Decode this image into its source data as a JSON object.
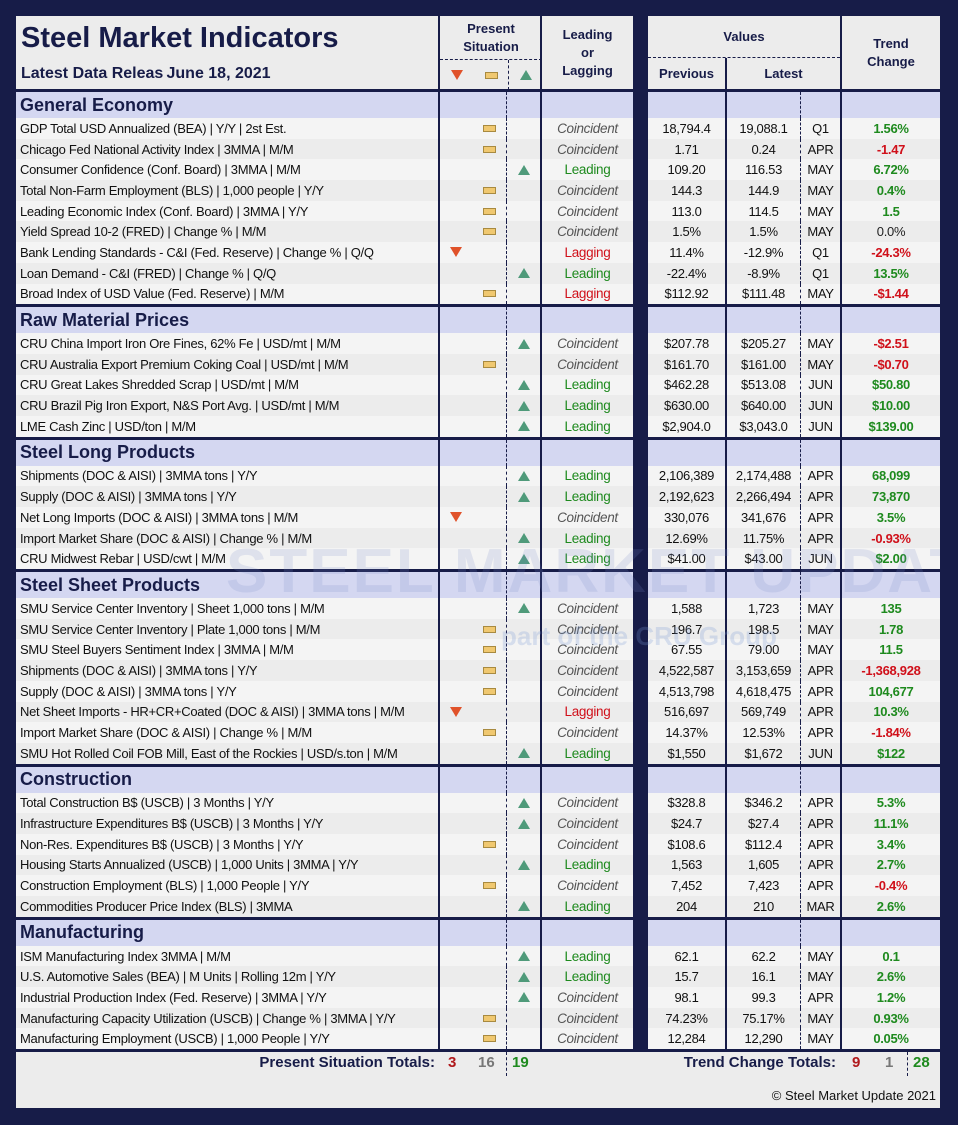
{
  "header": {
    "title": "Steel Market Indicators",
    "subtitle": "Latest Data Releas June 18, 2021",
    "present_label": "Present Situation",
    "leading_label": "Leading or Lagging",
    "values_label": "Values",
    "previous_label": "Previous",
    "latest_label": "Latest",
    "trend_label": "Trend Change"
  },
  "colors": {
    "navy": "#171c48",
    "section_bg": "#d4d7f1",
    "up": "#1e8a1e",
    "down": "#d0101a",
    "down_marker": "#e0522a",
    "up_marker": "#4f9a7a",
    "flat_marker": "#f0c870"
  },
  "watermark": {
    "text": "STEEL MARKET UPDATE",
    "sub": "part of the CRU Group"
  },
  "sections": [
    {
      "title": "General Economy",
      "rows": [
        [
          "GDP Total USD Annualized (BEA) | Y/Y | 2st Est.",
          "flat",
          "Coincident",
          "18,794.4",
          "19,088.1",
          "Q1",
          "1.56%",
          "up"
        ],
        [
          "Chicago Fed National Activity Index | 3MMA | M/M",
          "flat",
          "Coincident",
          "1.71",
          "0.24",
          "APR",
          "-1.47",
          "down"
        ],
        [
          "Consumer Confidence (Conf. Board) | 3MMA | M/M",
          "up",
          "Leading",
          "109.20",
          "116.53",
          "MAY",
          "6.72%",
          "up"
        ],
        [
          "Total Non-Farm Employment (BLS) | 1,000 people | Y/Y",
          "flat",
          "Coincident",
          "144.3",
          "144.9",
          "MAY",
          "0.4%",
          "up"
        ],
        [
          "Leading Economic Index (Conf. Board) | 3MMA | Y/Y",
          "flat",
          "Coincident",
          "113.0",
          "114.5",
          "MAY",
          "1.5",
          "up"
        ],
        [
          "Yield Spread 10-2 (FRED) | Change % | M/M",
          "flat",
          "Coincident",
          "1.5%",
          "1.5%",
          "MAY",
          "0.0%",
          "flat"
        ],
        [
          "Bank Lending Standards - C&I (Fed. Reserve) | Change % | Q/Q",
          "down",
          "Lagging",
          "11.4%",
          "-12.9%",
          "Q1",
          "-24.3%",
          "down"
        ],
        [
          "Loan Demand - C&I (FRED) | Change % | Q/Q",
          "up",
          "Leading",
          "-22.4%",
          "-8.9%",
          "Q1",
          "13.5%",
          "up"
        ],
        [
          "Broad Index of USD Value (Fed. Reserve) | M/M",
          "flat",
          "Lagging",
          "$112.92",
          "$111.48",
          "MAY",
          "-$1.44",
          "down"
        ]
      ]
    },
    {
      "title": "Raw Material Prices",
      "rows": [
        [
          "CRU China Import Iron Ore Fines, 62% Fe | USD/mt | M/M",
          "up",
          "Coincident",
          "$207.78",
          "$205.27",
          "MAY",
          "-$2.51",
          "down"
        ],
        [
          "CRU Australia Export Premium Coking Coal | USD/mt | M/M",
          "flat",
          "Coincident",
          "$161.70",
          "$161.00",
          "MAY",
          "-$0.70",
          "down"
        ],
        [
          "CRU Great Lakes Shredded Scrap | USD/mt | M/M",
          "up",
          "Leading",
          "$462.28",
          "$513.08",
          "JUN",
          "$50.80",
          "up"
        ],
        [
          "CRU Brazil Pig Iron Export, N&S Port Avg. | USD/mt | M/M",
          "up",
          "Leading",
          "$630.00",
          "$640.00",
          "JUN",
          "$10.00",
          "up"
        ],
        [
          "LME Cash Zinc | USD/ton | M/M",
          "up",
          "Leading",
          "$2,904.0",
          "$3,043.0",
          "JUN",
          "$139.00",
          "up"
        ]
      ]
    },
    {
      "title": "Steel Long Products",
      "rows": [
        [
          "Shipments (DOC & AISI) | 3MMA tons | Y/Y",
          "up",
          "Leading",
          "2,106,389",
          "2,174,488",
          "APR",
          "68,099",
          "up"
        ],
        [
          "Supply (DOC & AISI) | 3MMA tons | Y/Y",
          "up",
          "Leading",
          "2,192,623",
          "2,266,494",
          "APR",
          "73,870",
          "up"
        ],
        [
          "Net Long Imports (DOC & AISI) | 3MMA tons | M/M",
          "down",
          "Coincident",
          "330,076",
          "341,676",
          "APR",
          "3.5%",
          "up"
        ],
        [
          "Import Market Share (DOC & AISI) | Change % | M/M",
          "up",
          "Leading",
          "12.69%",
          "11.75%",
          "APR",
          "-0.93%",
          "down"
        ],
        [
          "CRU Midwest Rebar | USD/cwt | M/M",
          "up",
          "Leading",
          "$41.00",
          "$43.00",
          "JUN",
          "$2.00",
          "up"
        ]
      ]
    },
    {
      "title": "Steel Sheet Products",
      "rows": [
        [
          "SMU Service Center Inventory | Sheet 1,000 tons | M/M",
          "up",
          "Coincident",
          "1,588",
          "1,723",
          "MAY",
          "135",
          "up"
        ],
        [
          "SMU Service Center Inventory | Plate 1,000 tons | M/M",
          "flat",
          "Coincident",
          "196.7",
          "198.5",
          "MAY",
          "1.78",
          "up"
        ],
        [
          "SMU Steel Buyers Sentiment Index | 3MMA | M/M",
          "flat",
          "Coincident",
          "67.55",
          "79.00",
          "MAY",
          "11.5",
          "up"
        ],
        [
          "Shipments (DOC & AISI) | 3MMA tons | Y/Y",
          "flat",
          "Coincident",
          "4,522,587",
          "3,153,659",
          "APR",
          "-1,368,928",
          "down"
        ],
        [
          "Supply (DOC & AISI) | 3MMA tons | Y/Y",
          "flat",
          "Coincident",
          "4,513,798",
          "4,618,475",
          "APR",
          "104,677",
          "up"
        ],
        [
          "Net Sheet Imports - HR+CR+Coated (DOC & AISI) | 3MMA tons | M/M",
          "down",
          "Lagging",
          "516,697",
          "569,749",
          "APR",
          "10.3%",
          "up"
        ],
        [
          "Import Market Share (DOC & AISI) | Change % | M/M",
          "flat",
          "Coincident",
          "14.37%",
          "12.53%",
          "APR",
          "-1.84%",
          "down"
        ],
        [
          "SMU Hot Rolled Coil FOB Mill, East of the Rockies | USD/s.ton | M/M",
          "up",
          "Leading",
          "$1,550",
          "$1,672",
          "JUN",
          "$122",
          "up"
        ]
      ]
    },
    {
      "title": "Construction",
      "rows": [
        [
          "Total Construction B$ (USCB) | 3 Months | Y/Y",
          "up",
          "Coincident",
          "$328.8",
          "$346.2",
          "APR",
          "5.3%",
          "up"
        ],
        [
          "Infrastructure Expenditures B$ (USCB) | 3 Months | Y/Y",
          "up",
          "Coincident",
          "$24.7",
          "$27.4",
          "APR",
          "11.1%",
          "up"
        ],
        [
          "Non-Res. Expenditures B$ (USCB) | 3 Months | Y/Y",
          "flat",
          "Coincident",
          "$108.6",
          "$112.4",
          "APR",
          "3.4%",
          "up"
        ],
        [
          "Housing Starts Annualized (USCB) | 1,000 Units | 3MMA | Y/Y",
          "up",
          "Leading",
          "1,563",
          "1,605",
          "APR",
          "2.7%",
          "up"
        ],
        [
          "Construction Employment (BLS) | 1,000 People | Y/Y",
          "flat",
          "Coincident",
          "7,452",
          "7,423",
          "APR",
          "-0.4%",
          "down"
        ],
        [
          "Commodities Producer Price Index (BLS) | 3MMA",
          "up",
          "Leading",
          "204",
          "210",
          "MAR",
          "2.6%",
          "up"
        ]
      ]
    },
    {
      "title": "Manufacturing",
      "rows": [
        [
          "ISM Manufacturing Index 3MMA | M/M",
          "up",
          "Leading",
          "62.1",
          "62.2",
          "MAY",
          "0.1",
          "up"
        ],
        [
          "U.S. Automotive Sales (BEA) | M Units | Rolling 12m | Y/Y",
          "up",
          "Leading",
          "15.7",
          "16.1",
          "MAY",
          "2.6%",
          "up"
        ],
        [
          "Industrial Production Index (Fed. Reserve) | 3MMA | Y/Y",
          "up",
          "Coincident",
          "98.1",
          "99.3",
          "APR",
          "1.2%",
          "up"
        ],
        [
          "Manufacturing Capacity Utilization (USCB) | Change % | 3MMA | Y/Y",
          "flat",
          "Coincident",
          "74.23%",
          "75.17%",
          "MAY",
          "0.93%",
          "up"
        ],
        [
          "Manufacturing Employment (USCB) | 1,000 People | Y/Y",
          "flat",
          "Coincident",
          "12,284",
          "12,290",
          "MAY",
          "0.05%",
          "up"
        ]
      ]
    }
  ],
  "totals": {
    "present_label": "Present Situation Totals:",
    "present_down": "3",
    "present_flat": "16",
    "present_up": "19",
    "trend_label": "Trend Change Totals:",
    "trend_down": "9",
    "trend_flat": "1",
    "trend_up": "28"
  },
  "footer": {
    "copyright": "© Steel Market Update 2021"
  }
}
